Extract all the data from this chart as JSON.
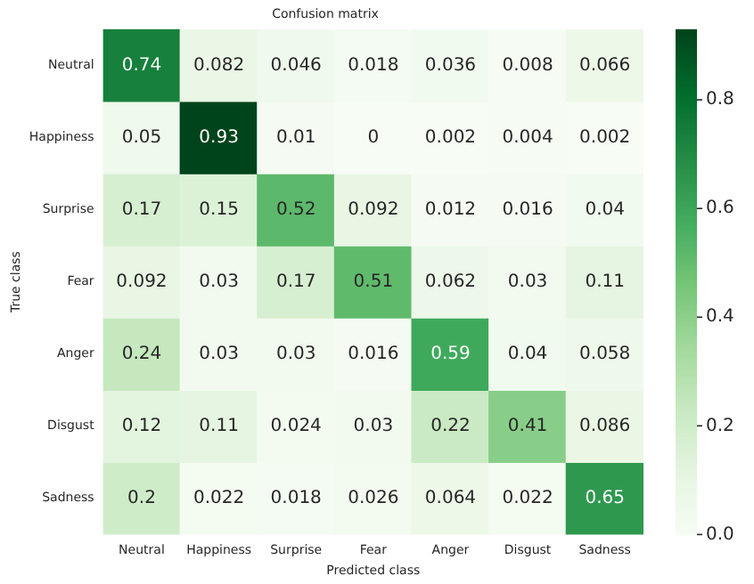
{
  "chart_data": {
    "type": "heatmap",
    "title": "Confusion matrix",
    "xlabel": "Predicted class",
    "ylabel": "True class",
    "categories": [
      "Neutral",
      "Happiness",
      "Surprise",
      "Fear",
      "Anger",
      "Disgust",
      "Sadness"
    ],
    "y_categories": [
      "Neutral",
      "Happiness",
      "Surprise",
      "Fear",
      "Anger",
      "Disgust",
      "Sadness"
    ],
    "cells": [
      [
        0.74,
        0.082,
        0.046,
        0.018,
        0.036,
        0.008,
        0.066
      ],
      [
        0.05,
        0.93,
        0.01,
        0,
        0.002,
        0.004,
        0.002
      ],
      [
        0.17,
        0.15,
        0.52,
        0.092,
        0.012,
        0.016,
        0.04
      ],
      [
        0.092,
        0.03,
        0.17,
        0.51,
        0.062,
        0.03,
        0.11
      ],
      [
        0.24,
        0.03,
        0.03,
        0.016,
        0.59,
        0.04,
        0.058
      ],
      [
        0.12,
        0.11,
        0.024,
        0.03,
        0.22,
        0.41,
        0.086
      ],
      [
        0.2,
        0.022,
        0.018,
        0.026,
        0.064,
        0.022,
        0.65
      ]
    ],
    "clim": [
      0,
      0.93
    ],
    "cticks": [
      {
        "value": 0,
        "label": "0.0"
      },
      0.2,
      0.4,
      0.6,
      0.8
    ],
    "data_labels": true
  }
}
